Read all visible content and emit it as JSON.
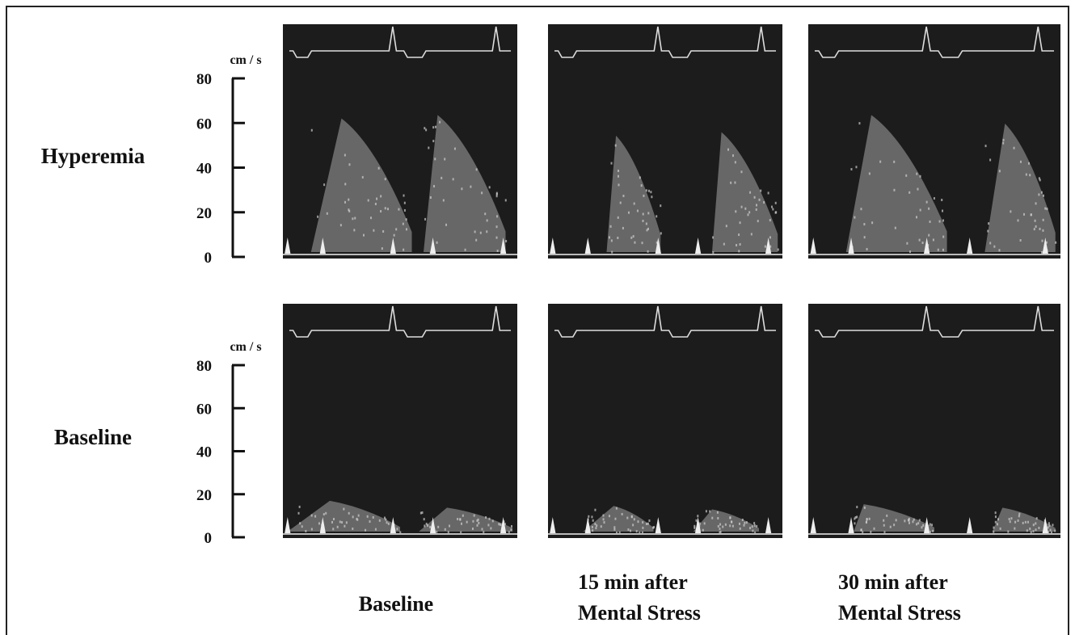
{
  "rows": [
    {
      "label": "Hyperemia",
      "axis": {
        "unit": "cm / s",
        "ticks": [
          0,
          20,
          40,
          60,
          80
        ]
      }
    },
    {
      "label": "Baseline",
      "axis": {
        "unit": "cm / s",
        "ticks": [
          0,
          20,
          40,
          60,
          80
        ]
      }
    }
  ],
  "columns": [
    {
      "lines": [
        "Baseline"
      ]
    },
    {
      "lines": [
        "15 min after",
        "Mental Stress"
      ]
    },
    {
      "lines": [
        "30 min after",
        "Mental Stress"
      ]
    }
  ]
}
